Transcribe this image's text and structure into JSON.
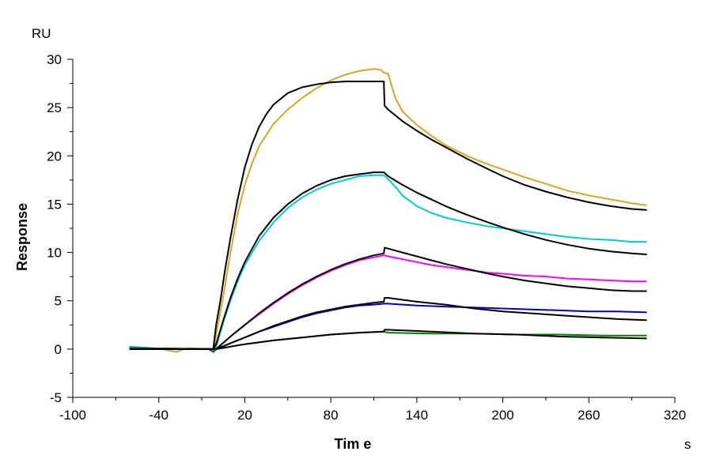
{
  "chart_data": {
    "type": "line",
    "xlabel": "Tim e",
    "ylabel": "Response",
    "x_unit": "s",
    "y_unit": "RU",
    "xlim": [
      -100,
      320
    ],
    "ylim": [
      -5,
      30
    ],
    "x_ticks": [
      -100,
      -40,
      20,
      80,
      140,
      200,
      260,
      320
    ],
    "y_ticks": [
      -5,
      0,
      5,
      10,
      15,
      20,
      25,
      30
    ],
    "grid": false,
    "series": [
      {
        "color": "#DAA520",
        "role": "measured",
        "points": [
          [
            -60,
            0.2
          ],
          [
            -40,
            0.05
          ],
          [
            -28,
            -0.3
          ],
          [
            -20,
            0.1
          ],
          [
            -5,
            0
          ],
          [
            -2,
            -0.3
          ],
          [
            0,
            1.5
          ],
          [
            5,
            5.5
          ],
          [
            10,
            10
          ],
          [
            15,
            14
          ],
          [
            20,
            17
          ],
          [
            25,
            19.2
          ],
          [
            30,
            21
          ],
          [
            40,
            23.3
          ],
          [
            50,
            24.8
          ],
          [
            60,
            26
          ],
          [
            70,
            27
          ],
          [
            80,
            27.8
          ],
          [
            90,
            28.4
          ],
          [
            100,
            28.8
          ],
          [
            110,
            29
          ],
          [
            115,
            28.9
          ],
          [
            117,
            28.6
          ],
          [
            120,
            28.5
          ],
          [
            122,
            27.5
          ],
          [
            125,
            26
          ],
          [
            130,
            24.6
          ],
          [
            140,
            23.2
          ],
          [
            150,
            22.1
          ],
          [
            160,
            21.1
          ],
          [
            175,
            20
          ],
          [
            190,
            19.1
          ],
          [
            200,
            18.6
          ],
          [
            215,
            17.8
          ],
          [
            230,
            17.1
          ],
          [
            245,
            16.4
          ],
          [
            260,
            15.9
          ],
          [
            275,
            15.5
          ],
          [
            290,
            15.1
          ],
          [
            300,
            14.9
          ]
        ]
      },
      {
        "color": "#00CED1",
        "role": "measured",
        "points": [
          [
            -60,
            0.25
          ],
          [
            -40,
            0.05
          ],
          [
            -5,
            0
          ],
          [
            -2,
            -0.3
          ],
          [
            0,
            0.2
          ],
          [
            5,
            2.8
          ],
          [
            10,
            5
          ],
          [
            15,
            7
          ],
          [
            20,
            8.7
          ],
          [
            30,
            11.2
          ],
          [
            40,
            13.1
          ],
          [
            50,
            14.6
          ],
          [
            60,
            15.7
          ],
          [
            70,
            16.5
          ],
          [
            80,
            17.1
          ],
          [
            90,
            17.5
          ],
          [
            100,
            17.9
          ],
          [
            110,
            18
          ],
          [
            117,
            18
          ],
          [
            120,
            17.6
          ],
          [
            125,
            16.8
          ],
          [
            130,
            15.9
          ],
          [
            140,
            14.8
          ],
          [
            150,
            14.1
          ],
          [
            160,
            13.6
          ],
          [
            175,
            13.1
          ],
          [
            190,
            12.7
          ],
          [
            200,
            12.5
          ],
          [
            215,
            12.2
          ],
          [
            230,
            11.9
          ],
          [
            245,
            11.6
          ],
          [
            260,
            11.4
          ],
          [
            275,
            11.3
          ],
          [
            290,
            11.1
          ],
          [
            300,
            11.1
          ]
        ]
      },
      {
        "color": "#FF00FF",
        "role": "measured",
        "points": [
          [
            -60,
            0.1
          ],
          [
            -5,
            0
          ],
          [
            -2,
            -0.3
          ],
          [
            0,
            0
          ],
          [
            10,
            1.3
          ],
          [
            20,
            2.5
          ],
          [
            30,
            3.6
          ],
          [
            40,
            4.7
          ],
          [
            50,
            5.7
          ],
          [
            60,
            6.6
          ],
          [
            70,
            7.4
          ],
          [
            80,
            8.1
          ],
          [
            90,
            8.7
          ],
          [
            100,
            9.2
          ],
          [
            110,
            9.5
          ],
          [
            117,
            9.7
          ],
          [
            120,
            9.6
          ],
          [
            130,
            9.3
          ],
          [
            140,
            9
          ],
          [
            150,
            8.7
          ],
          [
            160,
            8.5
          ],
          [
            175,
            8.2
          ],
          [
            190,
            7.9
          ],
          [
            200,
            7.8
          ],
          [
            215,
            7.6
          ],
          [
            230,
            7.5
          ],
          [
            245,
            7.3
          ],
          [
            260,
            7.2
          ],
          [
            275,
            7.1
          ],
          [
            290,
            7
          ],
          [
            300,
            7
          ]
        ]
      },
      {
        "color": "#0000CD",
        "role": "measured",
        "points": [
          [
            -60,
            0.1
          ],
          [
            -5,
            0
          ],
          [
            -2,
            -0.3
          ],
          [
            0,
            0
          ],
          [
            10,
            0.6
          ],
          [
            20,
            1.2
          ],
          [
            30,
            1.8
          ],
          [
            40,
            2.3
          ],
          [
            50,
            2.8
          ],
          [
            60,
            3.3
          ],
          [
            70,
            3.7
          ],
          [
            80,
            4
          ],
          [
            90,
            4.3
          ],
          [
            100,
            4.5
          ],
          [
            110,
            4.6
          ],
          [
            117,
            4.7
          ],
          [
            120,
            4.7
          ],
          [
            140,
            4.5
          ],
          [
            160,
            4.4
          ],
          [
            180,
            4.3
          ],
          [
            200,
            4.2
          ],
          [
            220,
            4.1
          ],
          [
            240,
            4
          ],
          [
            260,
            3.9
          ],
          [
            280,
            3.9
          ],
          [
            300,
            3.8
          ]
        ]
      },
      {
        "color": "#008000",
        "role": "measured",
        "points": [
          [
            -60,
            0.1
          ],
          [
            -5,
            0
          ],
          [
            -2,
            -0.3
          ],
          [
            0,
            0
          ],
          [
            20,
            0.5
          ],
          [
            40,
            0.9
          ],
          [
            60,
            1.2
          ],
          [
            80,
            1.5
          ],
          [
            100,
            1.7
          ],
          [
            117,
            1.8
          ],
          [
            120,
            1.7
          ],
          [
            150,
            1.6
          ],
          [
            180,
            1.6
          ],
          [
            210,
            1.5
          ],
          [
            240,
            1.5
          ],
          [
            270,
            1.4
          ],
          [
            300,
            1.4
          ]
        ]
      },
      {
        "color": "#000000",
        "role": "fit",
        "points": [
          [
            -60,
            0
          ],
          [
            -2,
            0
          ],
          [
            0,
            2.5
          ],
          [
            3,
            5
          ],
          [
            6,
            8
          ],
          [
            10,
            11.5
          ],
          [
            15,
            15.5
          ],
          [
            20,
            18.8
          ],
          [
            25,
            21.2
          ],
          [
            30,
            23
          ],
          [
            35,
            24.3
          ],
          [
            40,
            25.3
          ],
          [
            50,
            26.5
          ],
          [
            60,
            27.1
          ],
          [
            70,
            27.4
          ],
          [
            80,
            27.6
          ],
          [
            90,
            27.7
          ],
          [
            100,
            27.7
          ],
          [
            117,
            27.7
          ],
          [
            117.5,
            25.2
          ],
          [
            120,
            24.8
          ],
          [
            130,
            23.6
          ],
          [
            140,
            22.6
          ],
          [
            150,
            21.7
          ],
          [
            160,
            20.9
          ],
          [
            175,
            19.7
          ],
          [
            190,
            18.6
          ],
          [
            200,
            17.9
          ],
          [
            215,
            17
          ],
          [
            230,
            16.3
          ],
          [
            245,
            15.7
          ],
          [
            260,
            15.2
          ],
          [
            275,
            14.8
          ],
          [
            290,
            14.5
          ],
          [
            300,
            14.4
          ]
        ]
      },
      {
        "color": "#000000",
        "role": "fit",
        "points": [
          [
            -60,
            0
          ],
          [
            -2,
            0
          ],
          [
            0,
            0.5
          ],
          [
            5,
            3
          ],
          [
            10,
            5.3
          ],
          [
            15,
            7.3
          ],
          [
            20,
            9
          ],
          [
            30,
            11.7
          ],
          [
            40,
            13.6
          ],
          [
            50,
            15
          ],
          [
            60,
            16.1
          ],
          [
            70,
            16.9
          ],
          [
            80,
            17.5
          ],
          [
            90,
            17.9
          ],
          [
            100,
            18.1
          ],
          [
            110,
            18.3
          ],
          [
            117,
            18.3
          ],
          [
            120,
            17.9
          ],
          [
            130,
            17
          ],
          [
            140,
            16.2
          ],
          [
            150,
            15.5
          ],
          [
            160,
            14.8
          ],
          [
            175,
            13.9
          ],
          [
            190,
            13.1
          ],
          [
            200,
            12.6
          ],
          [
            215,
            11.9
          ],
          [
            230,
            11.3
          ],
          [
            245,
            10.8
          ],
          [
            260,
            10.4
          ],
          [
            275,
            10.1
          ],
          [
            290,
            9.9
          ],
          [
            300,
            9.8
          ]
        ]
      },
      {
        "color": "#000000",
        "role": "fit",
        "points": [
          [
            -60,
            0
          ],
          [
            -2,
            0
          ],
          [
            0,
            0
          ],
          [
            10,
            1.3
          ],
          [
            20,
            2.5
          ],
          [
            30,
            3.7
          ],
          [
            40,
            4.8
          ],
          [
            50,
            5.8
          ],
          [
            60,
            6.7
          ],
          [
            70,
            7.5
          ],
          [
            80,
            8.2
          ],
          [
            90,
            8.8
          ],
          [
            100,
            9.3
          ],
          [
            110,
            9.7
          ],
          [
            117,
            9.9
          ],
          [
            117.5,
            10.5
          ],
          [
            120,
            10.4
          ],
          [
            130,
            10
          ],
          [
            140,
            9.6
          ],
          [
            150,
            9.2
          ],
          [
            160,
            8.8
          ],
          [
            175,
            8.3
          ],
          [
            190,
            7.8
          ],
          [
            200,
            7.5
          ],
          [
            215,
            7.1
          ],
          [
            230,
            6.8
          ],
          [
            245,
            6.5
          ],
          [
            260,
            6.3
          ],
          [
            275,
            6.1
          ],
          [
            290,
            6
          ],
          [
            300,
            6
          ]
        ]
      },
      {
        "color": "#000000",
        "role": "fit",
        "points": [
          [
            -60,
            0
          ],
          [
            -2,
            0
          ],
          [
            0,
            0
          ],
          [
            10,
            0.6
          ],
          [
            20,
            1.2
          ],
          [
            30,
            1.8
          ],
          [
            40,
            2.4
          ],
          [
            50,
            2.9
          ],
          [
            60,
            3.4
          ],
          [
            70,
            3.8
          ],
          [
            80,
            4.1
          ],
          [
            90,
            4.4
          ],
          [
            100,
            4.6
          ],
          [
            110,
            4.8
          ],
          [
            117,
            4.9
          ],
          [
            117.5,
            5.3
          ],
          [
            120,
            5.3
          ],
          [
            140,
            4.9
          ],
          [
            160,
            4.6
          ],
          [
            180,
            4.2
          ],
          [
            200,
            3.9
          ],
          [
            220,
            3.7
          ],
          [
            240,
            3.5
          ],
          [
            260,
            3.3
          ],
          [
            280,
            3.1
          ],
          [
            300,
            3
          ]
        ]
      },
      {
        "color": "#000000",
        "role": "fit",
        "points": [
          [
            -60,
            0
          ],
          [
            -2,
            0
          ],
          [
            0,
            0
          ],
          [
            20,
            0.5
          ],
          [
            40,
            0.9
          ],
          [
            60,
            1.2
          ],
          [
            80,
            1.5
          ],
          [
            100,
            1.7
          ],
          [
            117,
            1.8
          ],
          [
            117.5,
            2
          ],
          [
            120,
            2
          ],
          [
            150,
            1.8
          ],
          [
            180,
            1.6
          ],
          [
            210,
            1.5
          ],
          [
            240,
            1.3
          ],
          [
            270,
            1.2
          ],
          [
            300,
            1.1
          ]
        ]
      }
    ]
  }
}
